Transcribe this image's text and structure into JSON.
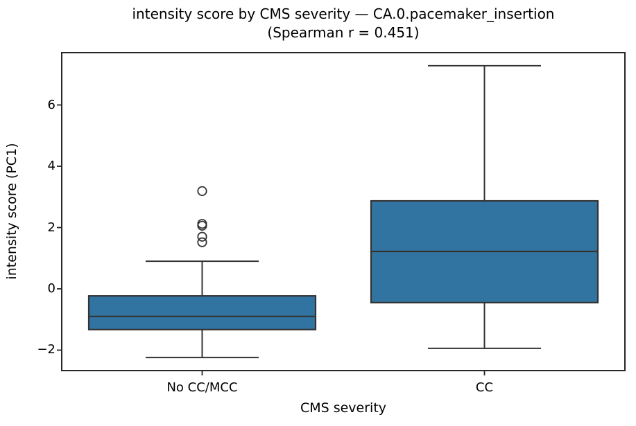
{
  "chart_data": {
    "type": "box",
    "title": "intensity score by CMS severity — CA.0.pacemaker_insertion",
    "subtitle": "(Spearman r = 0.451)",
    "xlabel": "CMS severity",
    "ylabel": "intensity score (PC1)",
    "categories": [
      "No CC/MCC",
      "CC"
    ],
    "yticks": [
      -2,
      0,
      2,
      4,
      6
    ],
    "ylim": [
      -2.69,
      7.73
    ],
    "grid": false,
    "series": [
      {
        "category": "No CC/MCC",
        "whisker_low": -2.24,
        "q1": -1.33,
        "median": -0.9,
        "q3": -0.23,
        "whisker_high": 0.9,
        "outliers": [
          1.52,
          1.7,
          2.06,
          2.12,
          3.19
        ]
      },
      {
        "category": "CC",
        "whisker_low": -1.94,
        "q1": -0.45,
        "median": 1.22,
        "q3": 2.87,
        "whisker_high": 7.28,
        "outliers": []
      }
    ],
    "colors": {
      "box_fill": "#3274a1",
      "line": "#333333",
      "frame": "#262626",
      "text": "#000000",
      "background": "#ffffff"
    }
  }
}
